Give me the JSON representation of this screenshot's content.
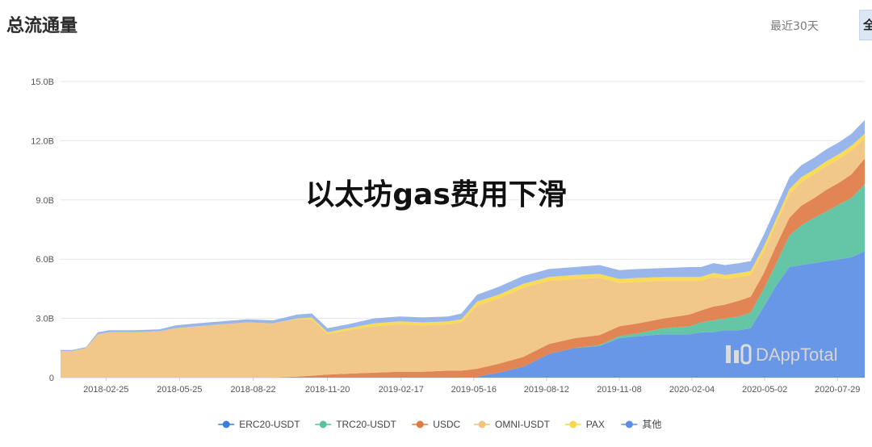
{
  "header": {
    "title": "总流通量",
    "range_30d": "最近30天",
    "range_all": "全"
  },
  "overlay_caption": "以太坊gas费用下滑",
  "watermark": "DAppTotal",
  "chart_data": {
    "type": "area",
    "stacked": true,
    "title": "总流通量",
    "xlabel": "",
    "ylabel": "",
    "xlim": [
      "2018-01-01",
      "2020-08-31"
    ],
    "ylim": [
      0,
      15
    ],
    "y_unit": "B",
    "y_ticks": [
      {
        "value": 0,
        "label": "0"
      },
      {
        "value": 3,
        "label": "3.0B"
      },
      {
        "value": 6,
        "label": "6.0B"
      },
      {
        "value": 9,
        "label": "9.0B"
      },
      {
        "value": 12,
        "label": "12.0B"
      },
      {
        "value": 15,
        "label": "15.0B"
      }
    ],
    "x_ticks": [
      "2018-02-25",
      "2018-05-25",
      "2018-08-22",
      "2018-11-20",
      "2019-02-17",
      "2019-05-16",
      "2019-08-12",
      "2019-11-08",
      "2020-02-04",
      "2020-05-02",
      "2020-07-29"
    ],
    "grid": true,
    "legend_position": "bottom",
    "x": [
      "2018-01-01",
      "2018-01-15",
      "2018-02-01",
      "2018-02-15",
      "2018-03-01",
      "2018-04-01",
      "2018-05-01",
      "2018-05-20",
      "2018-06-15",
      "2018-07-15",
      "2018-08-15",
      "2018-09-15",
      "2018-10-15",
      "2018-11-01",
      "2018-11-20",
      "2018-12-15",
      "2019-01-15",
      "2019-02-15",
      "2019-03-15",
      "2019-04-15",
      "2019-05-01",
      "2019-05-20",
      "2019-06-15",
      "2019-07-15",
      "2019-08-15",
      "2019-09-15",
      "2019-10-15",
      "2019-11-08",
      "2019-12-01",
      "2020-01-01",
      "2020-02-01",
      "2020-02-15",
      "2020-03-01",
      "2020-03-15",
      "2020-04-01",
      "2020-04-15",
      "2020-05-01",
      "2020-05-15",
      "2020-06-01",
      "2020-06-15",
      "2020-07-01",
      "2020-07-15",
      "2020-08-01",
      "2020-08-15",
      "2020-08-31"
    ],
    "series": [
      {
        "name": "其他",
        "color": "#5b8ee6",
        "values": [
          0,
          0,
          0,
          0,
          0,
          0,
          0,
          0,
          0,
          0,
          0,
          0,
          0,
          0,
          0,
          0,
          0,
          0,
          0,
          0,
          0,
          0.05,
          0.25,
          0.55,
          1.2,
          1.5,
          1.6,
          2.0,
          2.1,
          2.2,
          2.2,
          2.3,
          2.3,
          2.4,
          2.4,
          2.5,
          3.6,
          4.6,
          5.6,
          5.7,
          5.8,
          5.9,
          6.0,
          6.1,
          6.4
        ]
      },
      {
        "name": "ERC20-USDT",
        "color": "#3b7ddd",
        "values": [
          0,
          0,
          0,
          0,
          0,
          0,
          0,
          0,
          0,
          0,
          0,
          0,
          0,
          0,
          0,
          0,
          0,
          0,
          0,
          0,
          0,
          0,
          0,
          0,
          0,
          0,
          0,
          0,
          0,
          0,
          0,
          0,
          0,
          0,
          0,
          0,
          0,
          0,
          0,
          0,
          0,
          0,
          0,
          0,
          0
        ]
      },
      {
        "name": "TRC20-USDT",
        "color": "#58c1a0",
        "values": [
          0,
          0,
          0,
          0,
          0,
          0,
          0,
          0,
          0,
          0,
          0,
          0,
          0,
          0,
          0,
          0,
          0,
          0,
          0,
          0,
          0,
          0,
          0,
          0,
          0,
          0,
          0.05,
          0.1,
          0.15,
          0.3,
          0.4,
          0.5,
          0.6,
          0.6,
          0.7,
          0.8,
          0.9,
          1.1,
          1.6,
          2.0,
          2.3,
          2.5,
          2.8,
          3.0,
          3.4
        ]
      },
      {
        "name": "USDC",
        "color": "#e07b45",
        "values": [
          0,
          0,
          0,
          0,
          0,
          0,
          0,
          0,
          0,
          0,
          0,
          0,
          0.05,
          0.1,
          0.15,
          0.2,
          0.25,
          0.3,
          0.3,
          0.35,
          0.35,
          0.4,
          0.45,
          0.5,
          0.5,
          0.5,
          0.5,
          0.5,
          0.5,
          0.5,
          0.6,
          0.6,
          0.7,
          0.7,
          0.8,
          0.8,
          0.8,
          0.9,
          0.9,
          1.0,
          1.0,
          1.1,
          1.1,
          1.2,
          1.3
        ]
      },
      {
        "name": "OMNI-USDT",
        "color": "#f0c380",
        "values": [
          1.35,
          1.35,
          1.5,
          2.2,
          2.3,
          2.3,
          2.35,
          2.5,
          2.6,
          2.7,
          2.8,
          2.75,
          2.9,
          2.85,
          2.05,
          2.2,
          2.35,
          2.4,
          2.35,
          2.35,
          2.45,
          3.2,
          3.3,
          3.5,
          3.2,
          3.0,
          2.9,
          2.2,
          2.1,
          1.9,
          1.7,
          1.5,
          1.5,
          1.3,
          1.2,
          1.1,
          1.1,
          1.1,
          1.2,
          1.2,
          1.2,
          1.2,
          1.2,
          1.2,
          1.0
        ]
      },
      {
        "name": "PAX",
        "color": "#f7d84a",
        "values": [
          0,
          0,
          0,
          0,
          0,
          0,
          0,
          0,
          0,
          0,
          0,
          0,
          0.05,
          0.1,
          0.1,
          0.1,
          0.15,
          0.15,
          0.15,
          0.15,
          0.15,
          0.2,
          0.2,
          0.2,
          0.2,
          0.2,
          0.2,
          0.2,
          0.2,
          0.2,
          0.2,
          0.2,
          0.2,
          0.2,
          0.2,
          0.2,
          0.25,
          0.25,
          0.25,
          0.25,
          0.25,
          0.25,
          0.25,
          0.25,
          0.25
        ]
      },
      {
        "name": "",
        "color": "#8fb0ea",
        "in_legend": false,
        "values": [
          0.05,
          0.05,
          0.05,
          0.1,
          0.1,
          0.1,
          0.1,
          0.15,
          0.15,
          0.15,
          0.15,
          0.15,
          0.2,
          0.2,
          0.2,
          0.2,
          0.25,
          0.25,
          0.25,
          0.25,
          0.3,
          0.35,
          0.4,
          0.4,
          0.4,
          0.4,
          0.45,
          0.45,
          0.45,
          0.45,
          0.5,
          0.5,
          0.5,
          0.5,
          0.5,
          0.5,
          0.6,
          0.6,
          0.6,
          0.6,
          0.6,
          0.6,
          0.6,
          0.6,
          0.7
        ]
      }
    ],
    "legend": [
      {
        "name": "ERC20-USDT",
        "color": "#3b7ddd"
      },
      {
        "name": "TRC20-USDT",
        "color": "#58c1a0"
      },
      {
        "name": "USDC",
        "color": "#e07b45"
      },
      {
        "name": "OMNI-USDT",
        "color": "#f0c380"
      },
      {
        "name": "PAX",
        "color": "#f7d84a"
      },
      {
        "name": "其他",
        "color": "#5b8ee6"
      }
    ]
  }
}
